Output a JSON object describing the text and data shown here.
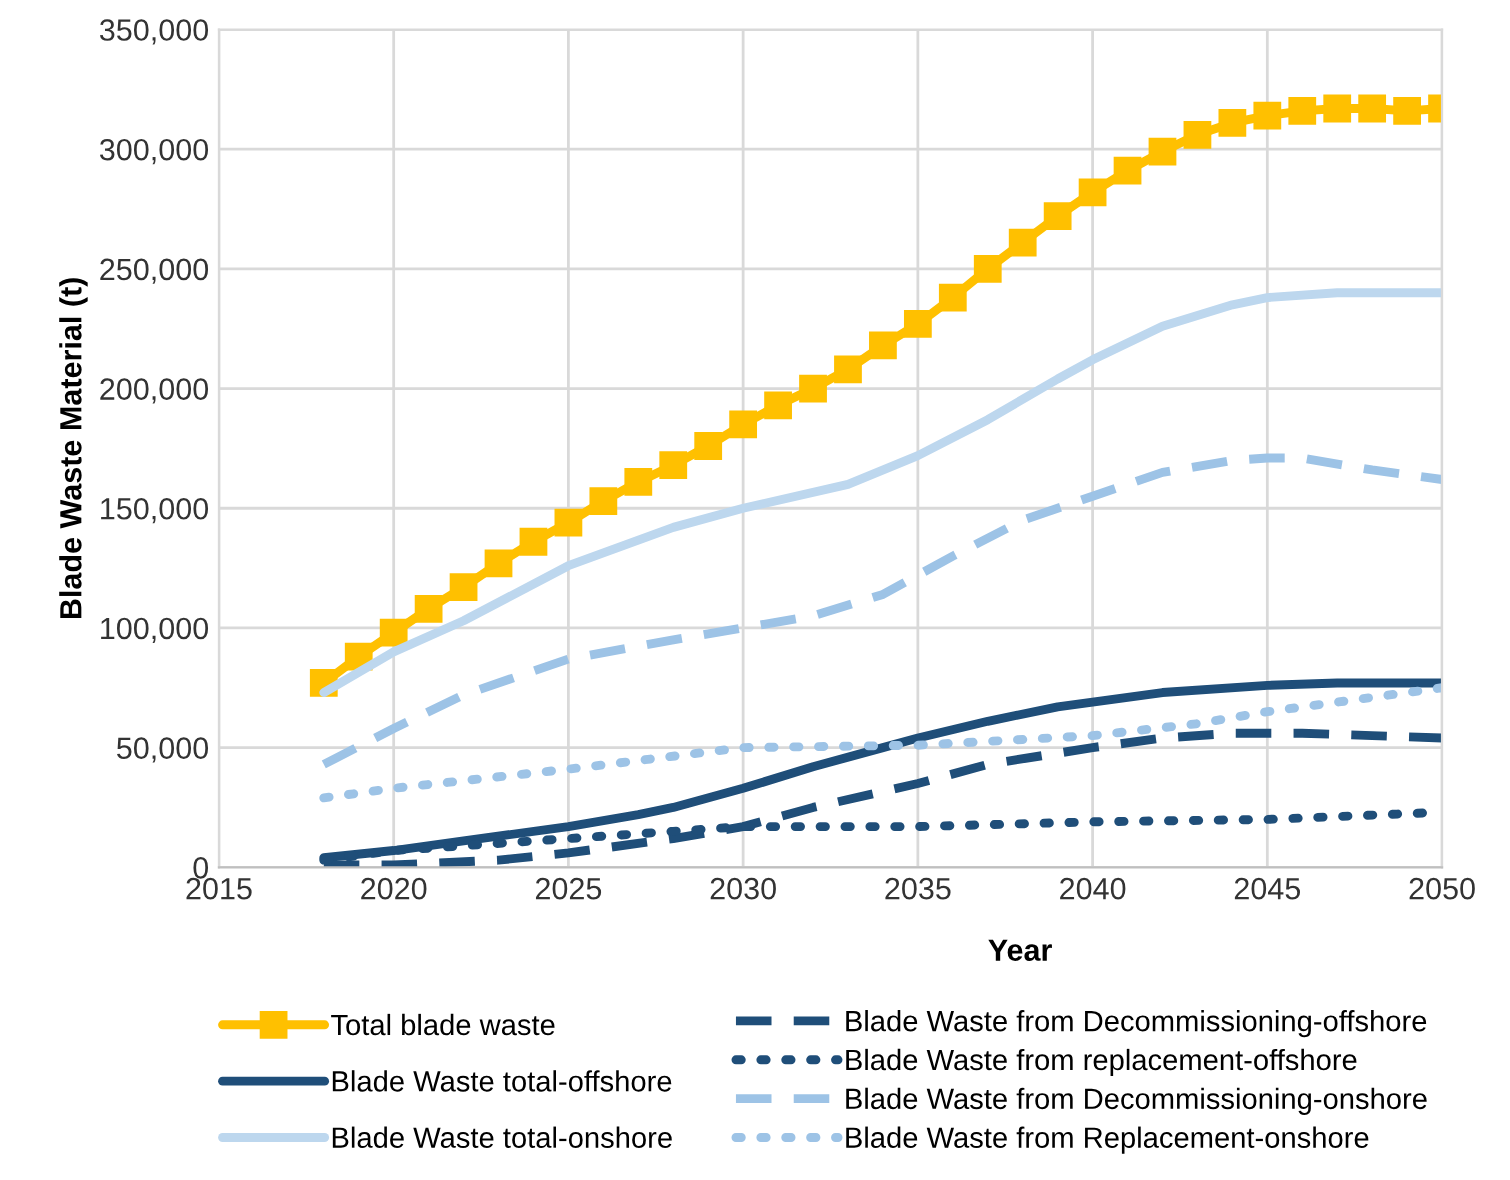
{
  "chart_data": {
    "type": "line",
    "xlabel": "Year",
    "ylabel": "Blade Waste Material (t)",
    "xlim": [
      2015,
      2050
    ],
    "xticks": [
      2015,
      2020,
      2025,
      2030,
      2035,
      2040,
      2045,
      2050
    ],
    "ylim": [
      0,
      350000
    ],
    "yticks": [
      {
        "value": 0,
        "label": "0"
      },
      {
        "value": 50000,
        "label": "50,000"
      },
      {
        "value": 100000,
        "label": "100,000"
      },
      {
        "value": 150000,
        "label": "150,000"
      },
      {
        "value": 200000,
        "label": "200,000"
      },
      {
        "value": 250000,
        "label": "250,000"
      },
      {
        "value": 300000,
        "label": "300,000"
      },
      {
        "value": 350000,
        "label": "350,000"
      }
    ],
    "grid": true,
    "legend": "bottom",
    "series": [
      {
        "name": "Total blade waste",
        "color": "#ffc000",
        "marker": "square",
        "line_style": "solid",
        "x": [
          2018,
          2019,
          2020,
          2021,
          2022,
          2023,
          2024,
          2025,
          2026,
          2027,
          2028,
          2029,
          2030,
          2031,
          2032,
          2033,
          2034,
          2035,
          2036,
          2037,
          2038,
          2039,
          2040,
          2041,
          2042,
          2043,
          2044,
          2045,
          2046,
          2047,
          2048,
          2049,
          2050
        ],
        "values": [
          77000,
          88000,
          98000,
          108000,
          117000,
          127000,
          136000,
          144000,
          153000,
          161000,
          168000,
          176000,
          185000,
          193000,
          200000,
          208000,
          218000,
          227000,
          238000,
          250000,
          261000,
          272000,
          282000,
          291000,
          299000,
          306000,
          311000,
          314000,
          316000,
          317000,
          317000,
          316000,
          317000
        ]
      },
      {
        "name": "Blade Waste total-offshore",
        "color": "#1f4e79",
        "line_style": "solid",
        "x": [
          2018,
          2020,
          2022,
          2025,
          2027,
          2028,
          2030,
          2032,
          2034,
          2035,
          2037,
          2039,
          2040,
          2042,
          2045,
          2047,
          2050
        ],
        "values": [
          4000,
          7000,
          11000,
          17000,
          22000,
          25000,
          33000,
          42000,
          50000,
          54000,
          61000,
          67000,
          69000,
          73000,
          76000,
          77000,
          77000
        ]
      },
      {
        "name": "Blade Waste total-onshore",
        "color": "#bdd7ee",
        "line_style": "solid",
        "x": [
          2018,
          2020,
          2022,
          2025,
          2028,
          2030,
          2033,
          2035,
          2037,
          2039,
          2040,
          2042,
          2044,
          2045,
          2047,
          2050
        ],
        "values": [
          73000,
          90000,
          103000,
          126000,
          142000,
          150000,
          160000,
          172000,
          187000,
          204000,
          212000,
          226000,
          235000,
          238000,
          240000,
          240000
        ]
      },
      {
        "name": "Blade Waste from Decommissioning-offshore",
        "color": "#1f4e79",
        "line_style": "dashed",
        "x": [
          2018,
          2020,
          2023,
          2025,
          2028,
          2030,
          2032,
          2035,
          2037,
          2040,
          2042,
          2044,
          2046,
          2048,
          2050
        ],
        "values": [
          1000,
          1000,
          3000,
          6000,
          12000,
          17000,
          25000,
          35000,
          43000,
          50000,
          54000,
          56000,
          56000,
          55000,
          54000
        ]
      },
      {
        "name": "Blade Waste from replacement-offshore",
        "color": "#1f4e79",
        "line_style": "dotted",
        "x": [
          2018,
          2020,
          2025,
          2028,
          2030,
          2035,
          2040,
          2045,
          2050
        ],
        "values": [
          3000,
          7000,
          12000,
          15000,
          17000,
          17000,
          19000,
          20000,
          23000
        ]
      },
      {
        "name": "Blade Waste from Decommissioning-onshore",
        "color": "#9dc3e6",
        "line_style": "dashed",
        "x": [
          2018,
          2020,
          2022,
          2025,
          2028,
          2030,
          2032,
          2034,
          2036,
          2038,
          2040,
          2042,
          2044,
          2045,
          2046,
          2048,
          2050
        ],
        "values": [
          43000,
          58000,
          72000,
          87000,
          95000,
          100000,
          105000,
          114000,
          130000,
          145000,
          155000,
          165000,
          170000,
          171000,
          171000,
          166000,
          162000
        ]
      },
      {
        "name": "Blade Waste from Replacement-onshore",
        "color": "#9dc3e6",
        "line_style": "dotted",
        "x": [
          2018,
          2020,
          2025,
          2030,
          2035,
          2040,
          2043,
          2045,
          2048,
          2050
        ],
        "values": [
          29000,
          33000,
          41000,
          50000,
          51000,
          55000,
          60000,
          65000,
          71000,
          75000
        ]
      }
    ]
  }
}
